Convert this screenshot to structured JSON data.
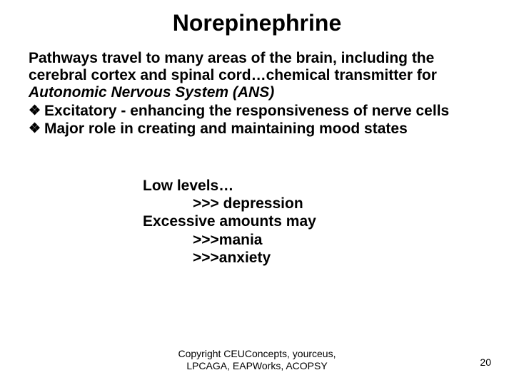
{
  "colors": {
    "background": "#ffffff",
    "text": "#000000"
  },
  "typography": {
    "title_fontsize_pt": 32,
    "body_fontsize_pt": 21,
    "footer_fontsize_pt": 14,
    "font_family": "Arial",
    "body_bold": true
  },
  "title": "Norepinephrine",
  "intro": {
    "line1_prefix": "Pathways travel to many areas of the brain, including the ",
    "line2_before_ellipsis": "cerebral cortex and spinal cord",
    "ellipsis": "…",
    "line2_after_ellipsis": "chemical transmitter for ",
    "line3_italic": "Autonomic Nervous System (ANS)"
  },
  "bullets": [
    "Excitatory - enhancing the responsiveness of nerve cells",
    "Major role in creating and maintaining mood states"
  ],
  "bullet_marker": "❖",
  "sub": {
    "l1": "Low levels…",
    "l2": ">>> depression",
    "l3": "Excessive amounts may",
    "l4": ">>>mania",
    "l5": ">>>anxiety"
  },
  "footer": {
    "line1": "Copyright CEUConcepts, yourceus,",
    "line2": "LPCAGA, EAPWorks, ACOPSY"
  },
  "page_number": "20"
}
